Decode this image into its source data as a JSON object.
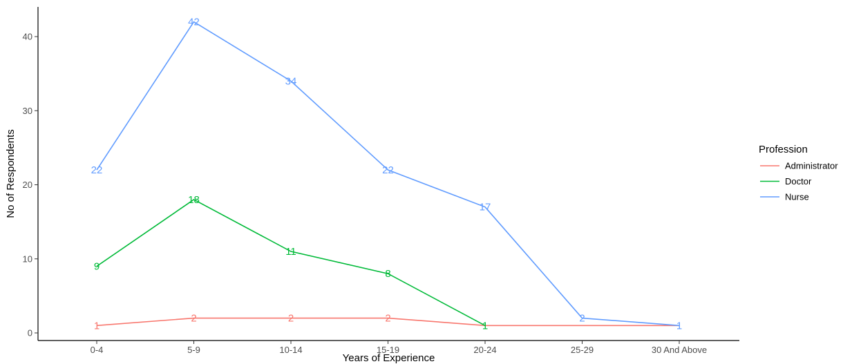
{
  "chart_data": {
    "type": "line",
    "xlabel": "Years of Experience",
    "ylabel": "No of Respondents",
    "categories": [
      "0-4",
      "5-9",
      "10-14",
      "15-19",
      "20-24",
      "25-29",
      "30 And Above"
    ],
    "ylim": [
      0,
      44
    ],
    "yticks": [
      0,
      10,
      20,
      30,
      40
    ],
    "grid": false,
    "legend": {
      "title": "Profession",
      "position": "right"
    },
    "series": [
      {
        "name": "Administrator",
        "color": "#F8766D",
        "values": [
          1,
          2,
          2,
          2,
          1,
          1,
          1
        ],
        "labels": [
          "1",
          "2",
          "2",
          "2",
          null,
          null,
          null
        ]
      },
      {
        "name": "Doctor",
        "color": "#00BA38",
        "values": [
          9,
          18,
          11,
          8,
          1,
          null,
          null
        ],
        "labels": [
          "9",
          "18",
          "11",
          "8",
          "1",
          null,
          null
        ]
      },
      {
        "name": "Nurse",
        "color": "#619CFF",
        "values": [
          22,
          42,
          34,
          22,
          17,
          2,
          1
        ],
        "labels": [
          "22",
          "42",
          "34",
          "22",
          "17",
          "2",
          "1"
        ]
      }
    ]
  }
}
